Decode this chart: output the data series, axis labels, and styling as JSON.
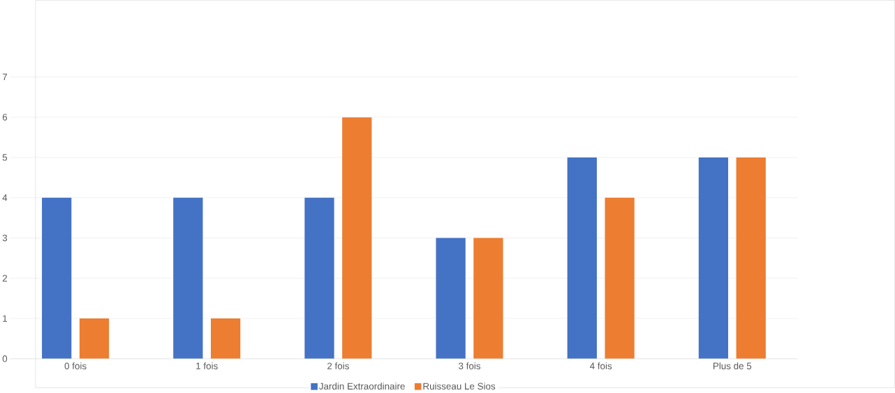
{
  "chart_data": {
    "type": "bar",
    "categories": [
      "0 fois",
      "1 fois",
      "2 fois",
      "3 fois",
      "4 fois",
      "Plus de 5"
    ],
    "series": [
      {
        "name": "Jardin Extraordinaire",
        "color": "#4472c4",
        "values": [
          4,
          4,
          4,
          3,
          5,
          5
        ]
      },
      {
        "name": "Ruisseau Le Sios",
        "color": "#ed7d31",
        "values": [
          1,
          1,
          6,
          3,
          4,
          5
        ]
      }
    ],
    "ylim": [
      0,
      7
    ],
    "yticks": [
      0,
      1,
      2,
      3,
      4,
      5,
      6,
      7
    ],
    "grid": "y",
    "legend": "bottom"
  }
}
